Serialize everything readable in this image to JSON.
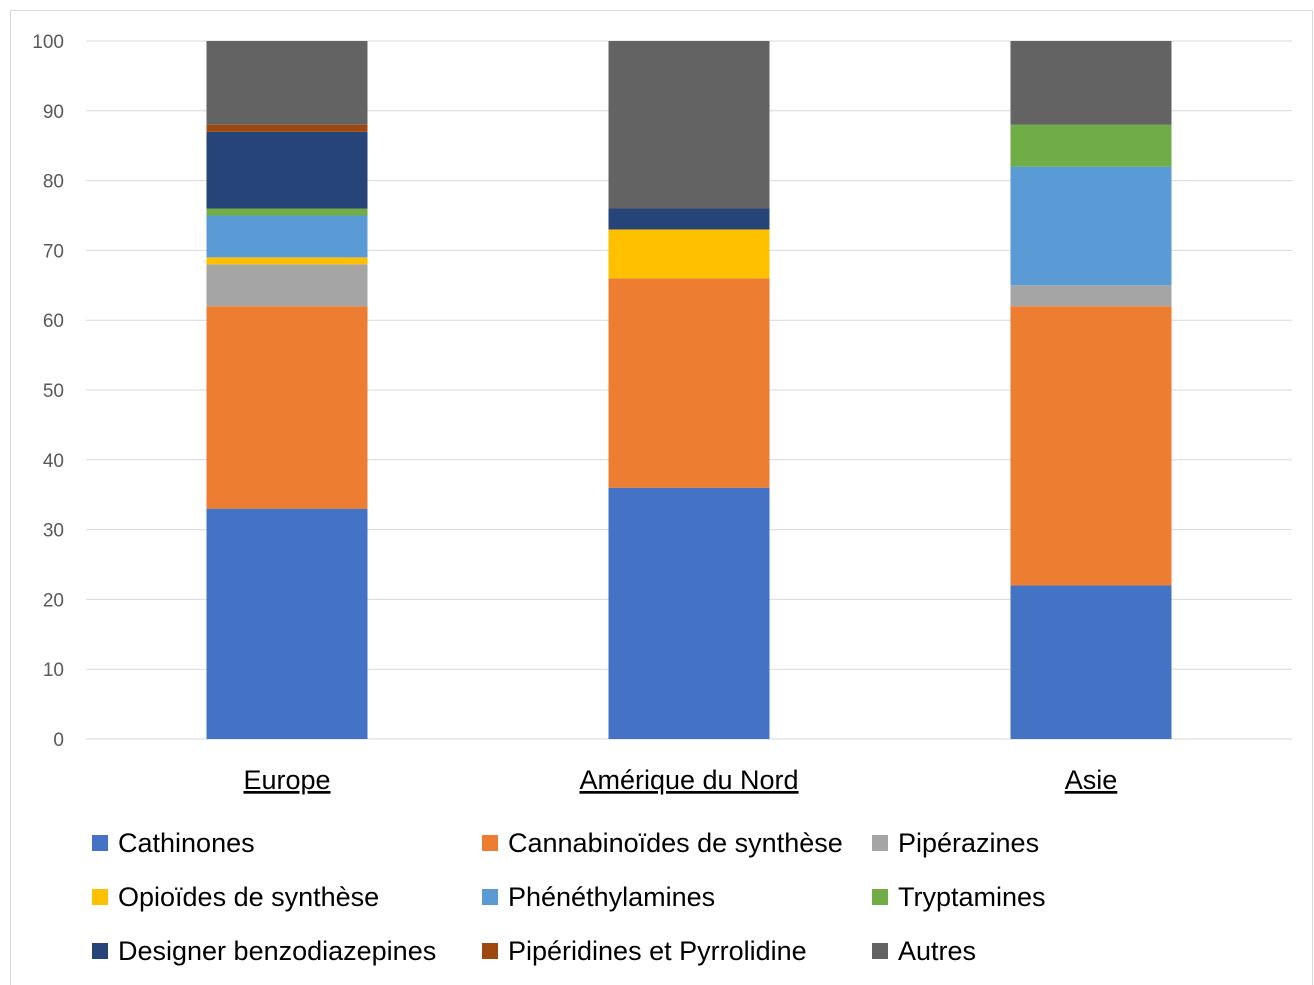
{
  "chart_data": {
    "type": "bar",
    "stacked": true,
    "categories": [
      "Europe",
      "Amérique du Nord",
      "Asie"
    ],
    "ylim": [
      0,
      100
    ],
    "yticks": [
      0,
      10,
      20,
      30,
      40,
      50,
      60,
      70,
      80,
      90,
      100
    ],
    "grid": true,
    "legend_position": "bottom",
    "series": [
      {
        "name": "Cathinones",
        "color": "#4472C4",
        "values": [
          33,
          36,
          22
        ]
      },
      {
        "name": "Cannabinoïdes de synthèse",
        "color": "#ED7D31",
        "values": [
          29,
          30,
          40
        ]
      },
      {
        "name": "Pipérazines",
        "color": "#A5A5A5",
        "values": [
          6,
          0,
          3
        ]
      },
      {
        "name": "Opioïdes de synthèse",
        "color": "#FFC000",
        "values": [
          1,
          7,
          0
        ]
      },
      {
        "name": "Phénéthylamines",
        "color": "#5B9BD5",
        "values": [
          6,
          0,
          17
        ]
      },
      {
        "name": "Tryptamines",
        "color": "#70AD47",
        "values": [
          1,
          0,
          6
        ]
      },
      {
        "name": "Designer benzodiazepines",
        "color": "#264478",
        "values": [
          11,
          3,
          0
        ]
      },
      {
        "name": "Pipéridines et Pyrrolidine",
        "color": "#9E480E",
        "values": [
          1,
          0,
          0
        ]
      },
      {
        "name": "Autres",
        "color": "#636363",
        "values": [
          12,
          24,
          12
        ]
      }
    ]
  }
}
